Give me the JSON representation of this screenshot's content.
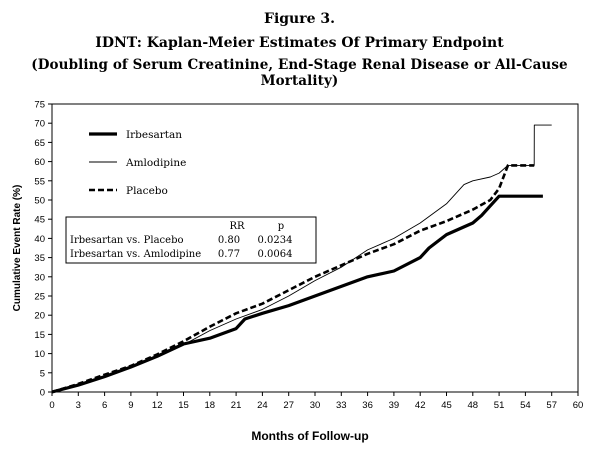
{
  "figure": {
    "label": "Figure 3.",
    "title": "IDNT: Kaplan-Meier Estimates Of Primary Endpoint",
    "subtitle": "(Doubling of Serum Creatinine, End-Stage Renal Disease or All-Cause Mortality)"
  },
  "stats_table": {
    "header_rr": "RR",
    "header_p": "p",
    "rows": [
      {
        "label": "Irbesartan vs. Placebo",
        "rr": "0.80",
        "p": "0.0234"
      },
      {
        "label": "Irbesartan vs. Amlodipine",
        "rr": "0.77",
        "p": "0.0064"
      }
    ]
  },
  "chart_data": {
    "type": "line",
    "step": true,
    "xlabel": "Months of Follow-up",
    "ylabel": "Cumulative Event Rate (%)",
    "xlim": [
      0,
      60
    ],
    "ylim": [
      0,
      75
    ],
    "xticks": [
      0,
      3,
      6,
      9,
      12,
      15,
      18,
      21,
      24,
      27,
      30,
      33,
      36,
      39,
      42,
      45,
      48,
      51,
      54,
      57,
      60
    ],
    "yticks": [
      0,
      5,
      10,
      15,
      20,
      25,
      30,
      35,
      40,
      45,
      50,
      55,
      60,
      65,
      70,
      75
    ],
    "grid": false,
    "legend_position": "top-left",
    "series": [
      {
        "name": "Irbesartan",
        "style": "thick-solid",
        "color": "#000000",
        "x": [
          0,
          3,
          6,
          9,
          12,
          15,
          18,
          21,
          22,
          24,
          27,
          30,
          33,
          36,
          39,
          42,
          43,
          45,
          47,
          48,
          49,
          50,
          51,
          54,
          56
        ],
        "y": [
          0,
          1.8,
          4,
          6.5,
          9.3,
          12.5,
          14,
          16.5,
          19,
          20.5,
          22.5,
          25,
          27.5,
          30,
          31.5,
          35,
          37.5,
          41,
          43,
          44,
          46,
          48.5,
          51,
          51,
          51
        ]
      },
      {
        "name": "Amlodipine",
        "style": "thin-solid",
        "color": "#000000",
        "x": [
          0,
          3,
          6,
          9,
          12,
          15,
          18,
          21,
          24,
          27,
          30,
          33,
          36,
          39,
          42,
          45,
          47,
          48,
          50,
          51,
          52,
          54,
          55,
          55.01,
          57
        ],
        "y": [
          0,
          2,
          4.2,
          6.6,
          9.6,
          12.3,
          16,
          19,
          21.5,
          25,
          29,
          32.5,
          37,
          40,
          44,
          49,
          54,
          55,
          56,
          57,
          59,
          59,
          59,
          69.5,
          69.5
        ]
      },
      {
        "name": "Placebo",
        "style": "dashed",
        "color": "#000000",
        "x": [
          0,
          3,
          6,
          9,
          12,
          15,
          18,
          21,
          24,
          27,
          30,
          33,
          36,
          39,
          42,
          45,
          48,
          50,
          51,
          52,
          55
        ],
        "y": [
          0,
          2.1,
          4.5,
          6.8,
          9.8,
          13.2,
          17,
          20.5,
          23,
          26.5,
          30,
          33,
          36,
          38.5,
          42,
          44.5,
          47.5,
          50,
          53,
          59,
          59
        ]
      }
    ]
  }
}
